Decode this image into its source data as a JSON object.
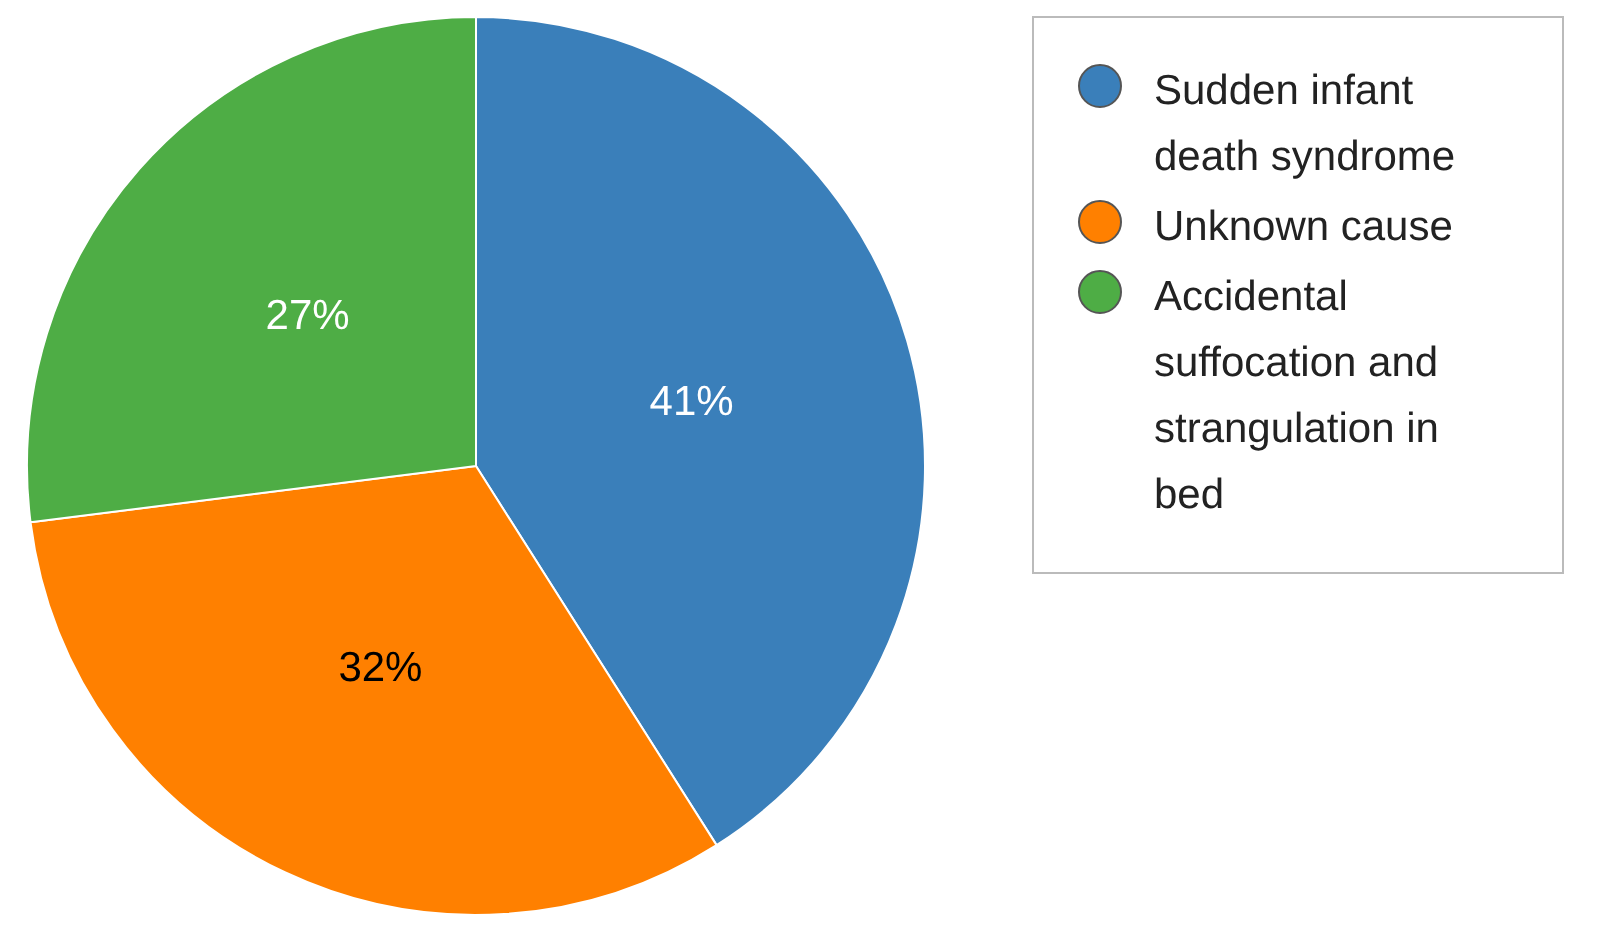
{
  "chart_data": {
    "type": "pie",
    "categories": [
      "Sudden infant death syndrome",
      "Unknown cause",
      "Accidental suffocation and strangulation in bed"
    ],
    "values": [
      41,
      32,
      27
    ],
    "colors": [
      "#3a7fba",
      "#ff8000",
      "#4ead45"
    ],
    "value_labels": [
      "41%",
      "32%",
      "27%"
    ],
    "legend": "right"
  }
}
